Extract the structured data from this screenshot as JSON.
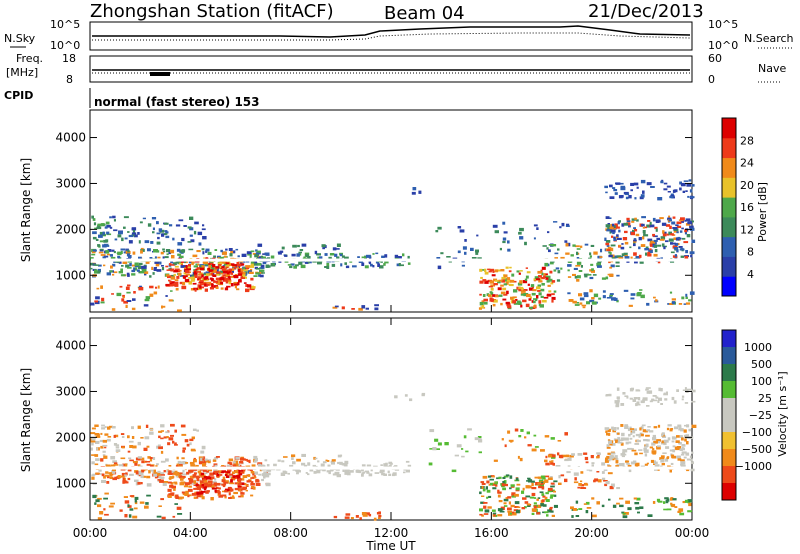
{
  "header": {
    "station": "Zhongshan Station (fitACF)",
    "beam": "Beam 04",
    "date": "21/Dec/2013"
  },
  "top_panels": {
    "nsky_label": "N.Sky",
    "nsky_ticks": [
      "10^5",
      "10^0"
    ],
    "nsearch_label": "N.Search",
    "nsearch_ticks": [
      "10^5",
      "10^0"
    ],
    "freq_label_1": "Freq.",
    "freq_label_2": "[MHz]",
    "freq_ticks": [
      "18",
      "8"
    ],
    "nave_label": "Nave",
    "nave_ticks": [
      "60",
      "0"
    ],
    "cpid_label": "CPID",
    "cpid_text": "normal (fast stereo) 153"
  },
  "colors": {
    "power_scale": [
      "#0000ff",
      "#2a3fa8",
      "#2e5fb0",
      "#3c8a5a",
      "#4ea84a",
      "#e8c22a",
      "#f08a1a",
      "#ee3a1a",
      "#dd0000"
    ],
    "velocity_scale": [
      "#2222cc",
      "#2a5a9a",
      "#2c7a4a",
      "#55bb33",
      "#c8c8c0",
      "#c8c8c0",
      "#f0c030",
      "#f08a1a",
      "#ee4a1a",
      "#dd0000"
    ]
  },
  "chart_data": [
    {
      "type": "heatmap",
      "name": "power",
      "ylabel": "Slant Range [km]",
      "yticks": [
        "1000",
        "2000",
        "3000",
        "4000"
      ],
      "ylim": [
        200,
        4600
      ],
      "xlim_hours": [
        0,
        24
      ],
      "colorbar_label": "Power [dB]",
      "colorbar_ticks": [
        "4",
        "8",
        "12",
        "16",
        "20",
        "24",
        "28"
      ],
      "colorbar_range": [
        0,
        32
      ]
    },
    {
      "type": "heatmap",
      "name": "velocity",
      "ylabel": "Slant Range [km]",
      "yticks": [
        "1000",
        "2000",
        "3000",
        "4000"
      ],
      "ylim": [
        200,
        4600
      ],
      "xlim_hours": [
        0,
        24
      ],
      "colorbar_label": "Velocity [m s⁻¹]",
      "colorbar_ticks": [
        "1000",
        "500",
        "100",
        "25",
        "−25",
        "−100",
        "−500",
        "−1000"
      ]
    }
  ],
  "xaxis": {
    "ticks": [
      "00:00",
      "04:00",
      "08:00",
      "12:00",
      "16:00",
      "20:00",
      "00:00"
    ],
    "label": "Time UT"
  }
}
